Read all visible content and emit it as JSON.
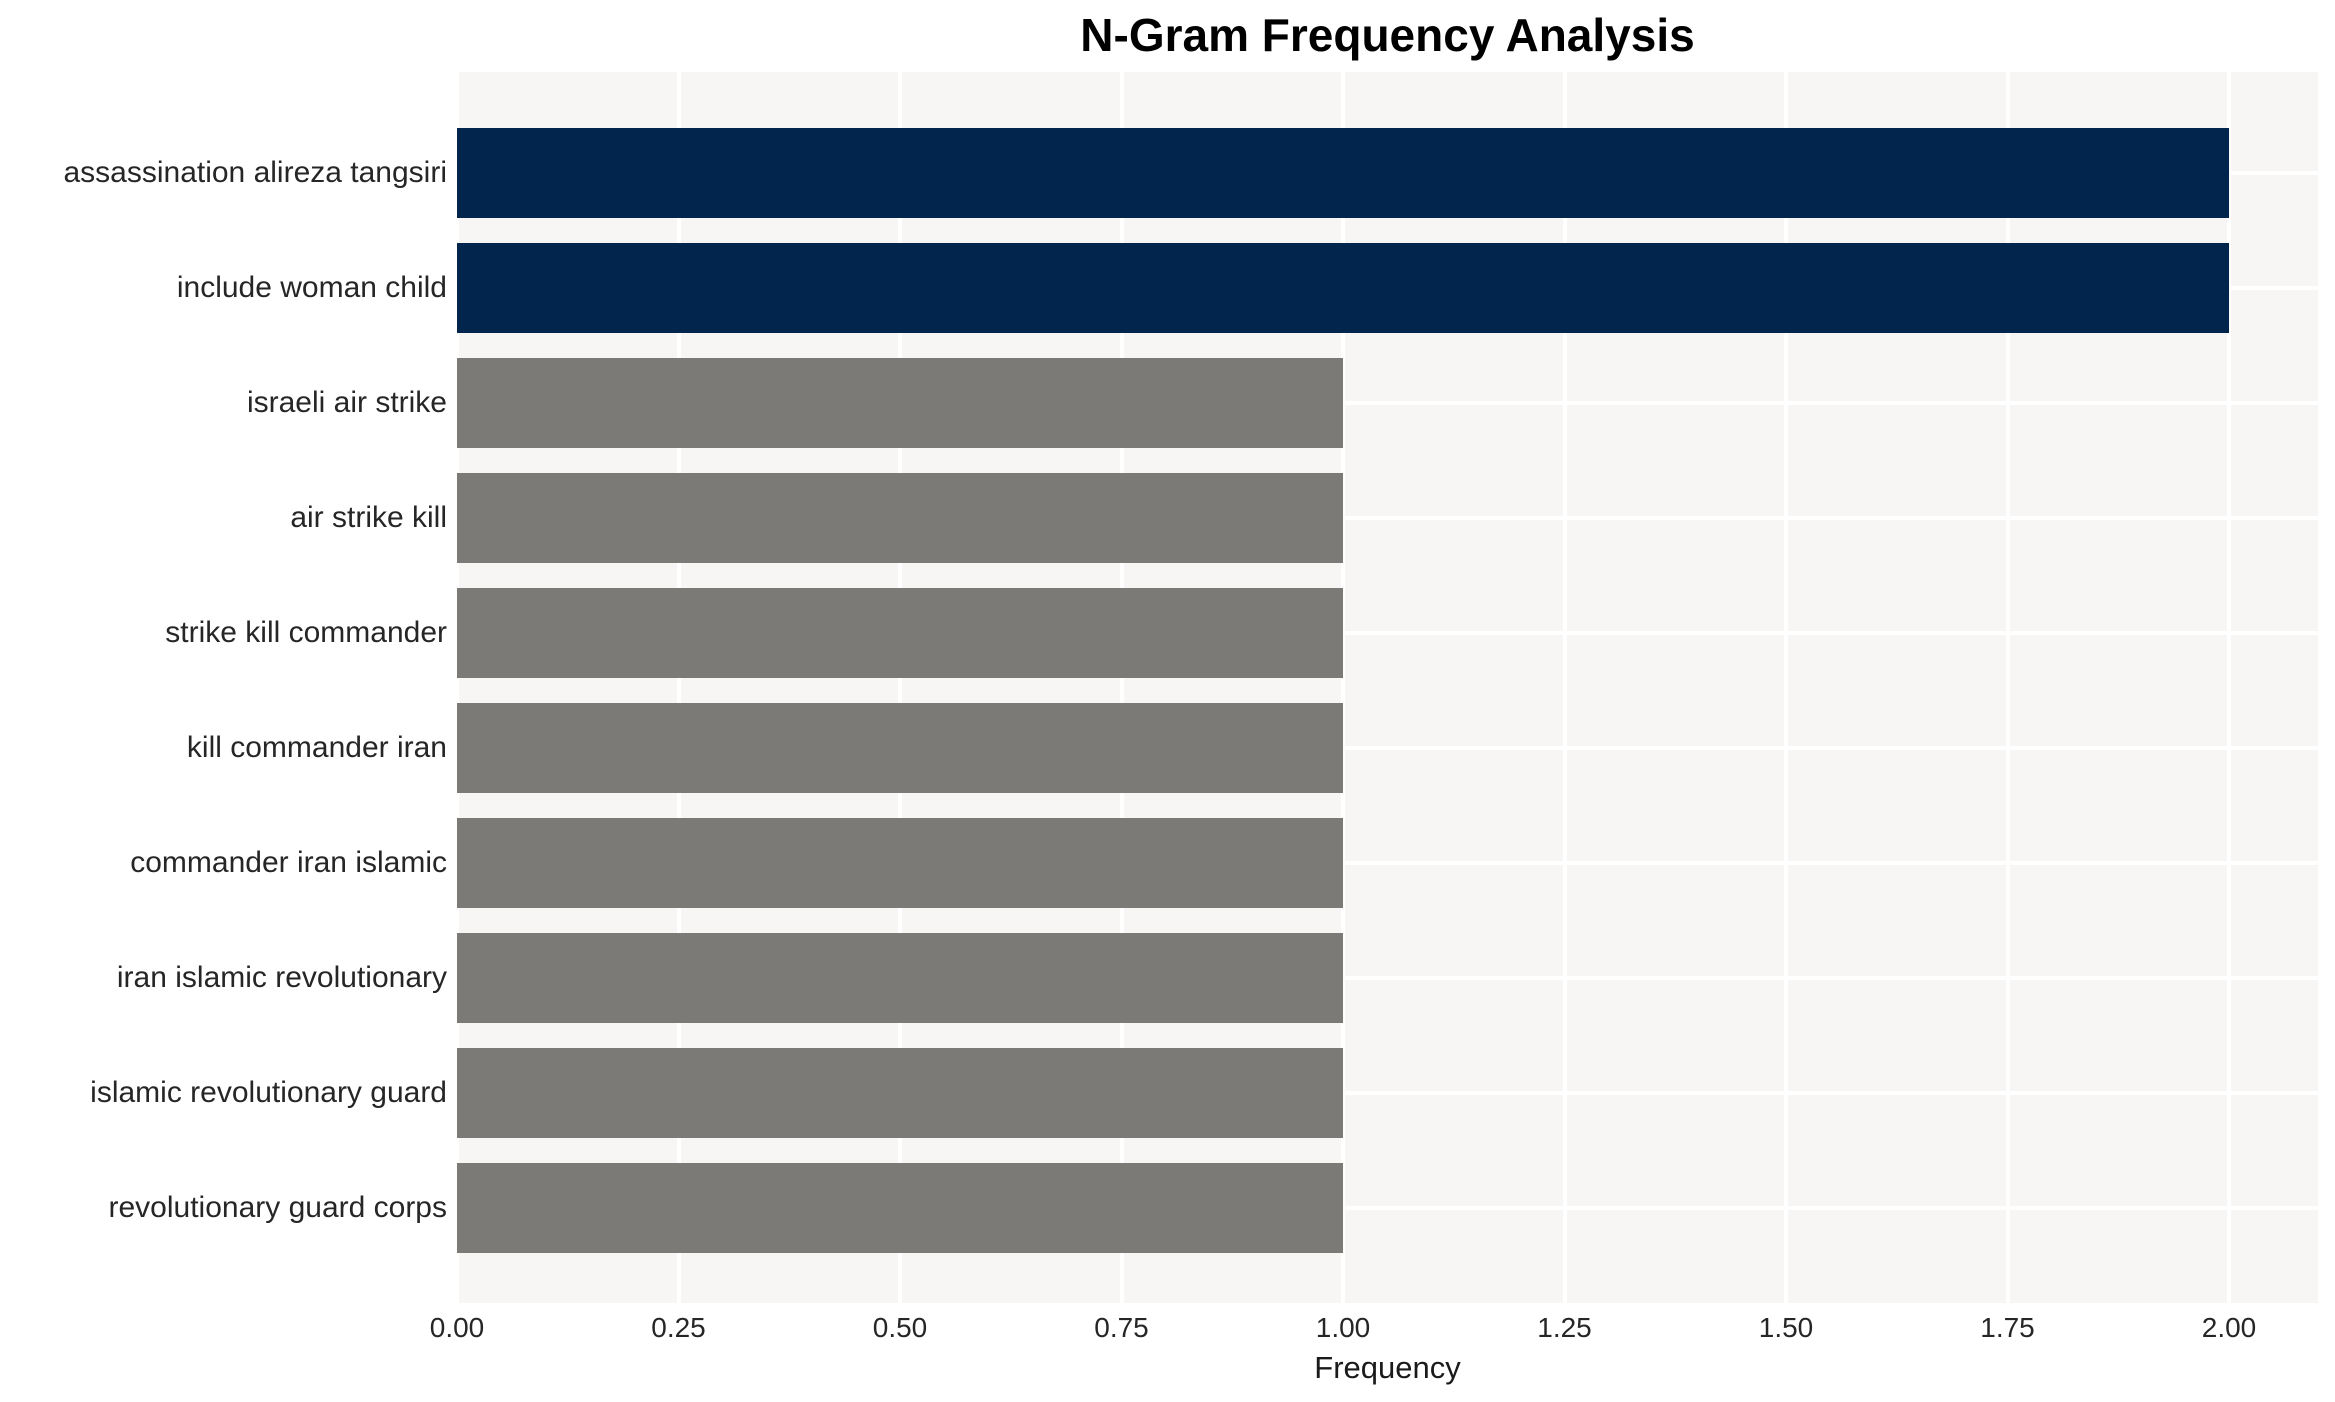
{
  "chart_data": {
    "type": "bar",
    "orientation": "horizontal",
    "title": "N-Gram Frequency Analysis",
    "xlabel": "Frequency",
    "ylabel": "",
    "categories": [
      "assassination alireza tangsiri",
      "include woman child",
      "israeli air strike",
      "air strike kill",
      "strike kill commander",
      "kill commander iran",
      "commander iran islamic",
      "iran islamic revolutionary",
      "islamic revolutionary guard",
      "revolutionary guard corps"
    ],
    "values": [
      2,
      2,
      1,
      1,
      1,
      1,
      1,
      1,
      1,
      1
    ],
    "bar_colors": [
      "#02254d",
      "#02254d",
      "#7b7a77",
      "#7b7a77",
      "#7b7a77",
      "#7b7a77",
      "#7b7a77",
      "#7b7a77",
      "#7b7a77",
      "#7b7a77"
    ],
    "xlim": [
      0,
      2.1
    ],
    "xticks": [
      "0.00",
      "0.25",
      "0.50",
      "0.75",
      "1.00",
      "1.25",
      "1.50",
      "1.75",
      "2.00"
    ],
    "grid": true,
    "legend_visible": false,
    "colors": {
      "bar_primary": "#02254d",
      "bar_secondary": "#7b7a77",
      "plot_background": "#f7f6f5",
      "gridline": "#ffffff",
      "label_text": "#262626",
      "title_text": "#000000"
    }
  }
}
